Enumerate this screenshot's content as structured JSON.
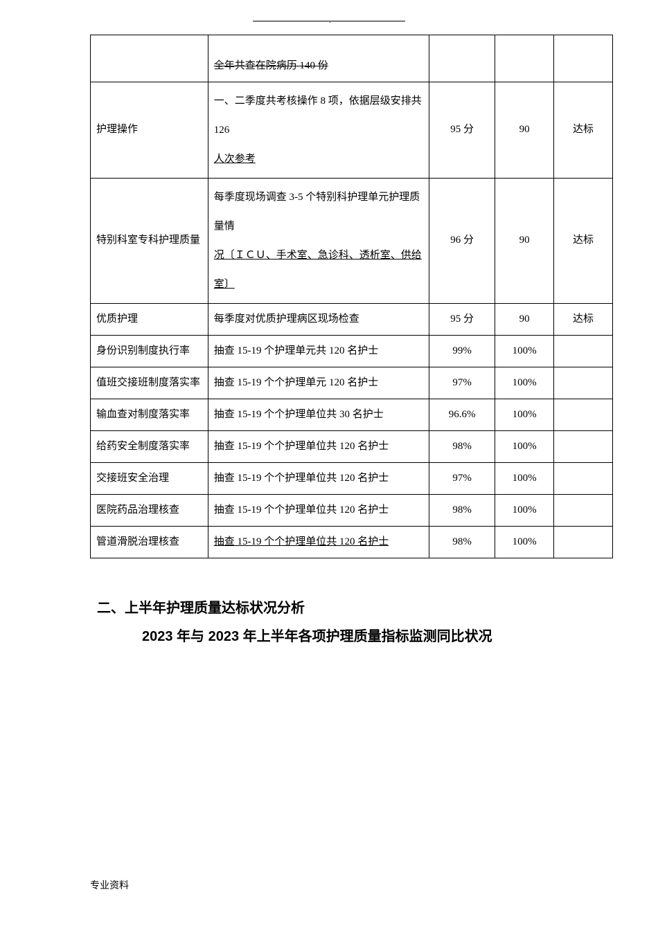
{
  "page_mark_dot": ".",
  "table": {
    "rows": [
      {
        "item": "",
        "desc_line1": "",
        "desc_line2": "全年共查在院病历 140 份",
        "score": "",
        "target": "",
        "status": "",
        "desc_line2_strike": true
      },
      {
        "item": "护理操作",
        "desc_line1": "一、二季度共考核操作 8 项，依据层级安排共 126",
        "desc_line2": "人次参考",
        "score": "95 分",
        "target": "90",
        "status": "达标",
        "desc_line2_underline": true
      },
      {
        "item": "特别科室专科护理质量",
        "desc_line1": "每季度现场调查 3-5 个特别科护理单元护理质量情",
        "desc_line2": "况〔ＩＣＵ、手术室、急诊科、透析室、供给室〕",
        "score": "96 分",
        "target": "90",
        "status": "达标",
        "desc_line2_underline": true
      },
      {
        "item": "优质护理",
        "desc": "每季度对优质护理病区现场检查",
        "score": "95 分",
        "target": "90",
        "status": "达标"
      },
      {
        "item": "身份识别制度执行率",
        "desc": "抽查 15-19 个护理单元共 120 名护士",
        "score": "99%",
        "target": "100%",
        "status": ""
      },
      {
        "item": "值班交接班制度落实率",
        "desc": "抽查 15-19 个个护理单元 120 名护士",
        "score": "97%",
        "target": "100%",
        "status": ""
      },
      {
        "item": "输血查对制度落实率",
        "desc": "抽查 15-19 个个护理单位共 30 名护士",
        "score": "96.6%",
        "target": "100%",
        "status": ""
      },
      {
        "item": "给药安全制度落实率",
        "desc": "抽查 15-19 个个护理单位共 120 名护士",
        "score": "98%",
        "target": "100%",
        "status": ""
      },
      {
        "item": "交接班安全治理",
        "desc": "抽查 15-19 个个护理单位共 120 名护士",
        "score": "97%",
        "target": "100%",
        "status": ""
      },
      {
        "item": "医院药品治理核查",
        "desc": "抽查 15-19 个个护理单位共 120 名护士",
        "score": "98%",
        "target": "100%",
        "status": ""
      },
      {
        "item": "管道滑脱治理核查",
        "desc": "抽查 15-19 个个护理单位共 120 名护士",
        "score": "98%",
        "target": "100%",
        "status": ""
      }
    ]
  },
  "section_heading": "二、上半年护理质量达标状况分析",
  "sub_heading": "2023 年与 2023 年上半年各项护理质量指标监测同比状况",
  "footer": "专业资料"
}
